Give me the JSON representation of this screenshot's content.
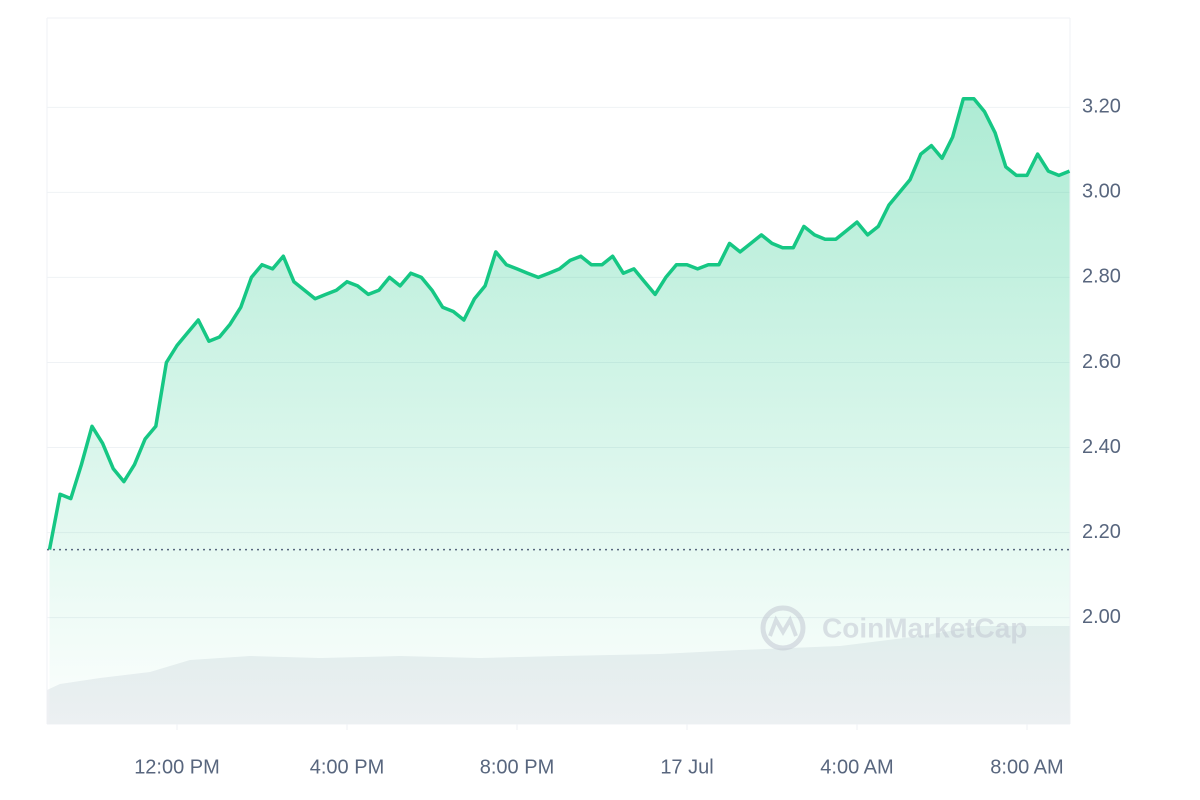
{
  "chart_data": {
    "type": "area",
    "watermark": "CoinMarketCap",
    "x": [
      9,
      9.25,
      9.5,
      9.75,
      10,
      10.25,
      10.5,
      10.75,
      11,
      11.25,
      11.5,
      11.75,
      12,
      12.25,
      12.5,
      12.75,
      13,
      13.25,
      13.5,
      13.75,
      14,
      14.25,
      14.5,
      14.75,
      15,
      15.25,
      15.5,
      15.75,
      16,
      16.25,
      16.5,
      16.75,
      17,
      17.25,
      17.5,
      17.75,
      18,
      18.25,
      18.5,
      18.75,
      19,
      19.25,
      19.5,
      19.75,
      20,
      20.25,
      20.5,
      20.75,
      21,
      21.25,
      21.5,
      21.75,
      22,
      22.25,
      22.5,
      22.75,
      23,
      23.25,
      23.5,
      23.75,
      24,
      24.25,
      24.5,
      24.75,
      25,
      25.25,
      25.5,
      25.75,
      26,
      26.25,
      26.5,
      26.75,
      27,
      27.25,
      27.5,
      27.75,
      28,
      28.25,
      28.5,
      28.75,
      29,
      29.25,
      29.5,
      29.75,
      30,
      30.25,
      30.5,
      30.75,
      31,
      31.25,
      31.5,
      31.75,
      32,
      32.25,
      32.5,
      32.75,
      33
    ],
    "series": [
      {
        "color": "#16c784",
        "values": [
          2.16,
          2.29,
          2.28,
          2.36,
          2.45,
          2.41,
          2.35,
          2.32,
          2.36,
          2.42,
          2.45,
          2.6,
          2.64,
          2.67,
          2.7,
          2.65,
          2.66,
          2.69,
          2.73,
          2.8,
          2.83,
          2.82,
          2.85,
          2.79,
          2.77,
          2.75,
          2.76,
          2.77,
          2.79,
          2.78,
          2.76,
          2.77,
          2.8,
          2.78,
          2.81,
          2.8,
          2.77,
          2.73,
          2.72,
          2.7,
          2.75,
          2.78,
          2.86,
          2.83,
          2.82,
          2.81,
          2.8,
          2.81,
          2.82,
          2.84,
          2.85,
          2.83,
          2.83,
          2.85,
          2.81,
          2.82,
          2.79,
          2.76,
          2.8,
          2.83,
          2.83,
          2.82,
          2.83,
          2.83,
          2.88,
          2.86,
          2.88,
          2.9,
          2.88,
          2.87,
          2.87,
          2.92,
          2.9,
          2.89,
          2.89,
          2.91,
          2.93,
          2.9,
          2.92,
          2.97,
          3.0,
          3.03,
          3.09,
          3.11,
          3.08,
          3.13,
          3.22,
          3.22,
          3.19,
          3.14,
          3.06,
          3.04,
          3.04,
          3.09,
          3.05,
          3.04,
          3.05
        ]
      }
    ],
    "xlim": [
      9,
      33
    ],
    "xticks": [
      {
        "value": 12,
        "label": "12:00 PM"
      },
      {
        "value": 16,
        "label": "4:00 PM"
      },
      {
        "value": 20,
        "label": "8:00 PM"
      },
      {
        "value": 24,
        "label": "17 Jul"
      },
      {
        "value": 28,
        "label": "4:00 AM"
      },
      {
        "value": 32,
        "label": "8:00 AM"
      }
    ],
    "ylim": [
      1.75,
      3.41
    ],
    "yticks": [
      {
        "value": 2,
        "label": "2.00"
      },
      {
        "value": 2.2,
        "label": "2.20"
      },
      {
        "value": 2.4,
        "label": "2.40"
      },
      {
        "value": 2.6,
        "label": "2.60"
      },
      {
        "value": 2.8,
        "label": "2.80"
      },
      {
        "value": 3,
        "label": "3.00"
      },
      {
        "value": 3.2,
        "label": "3.20"
      }
    ],
    "grid": true
  }
}
